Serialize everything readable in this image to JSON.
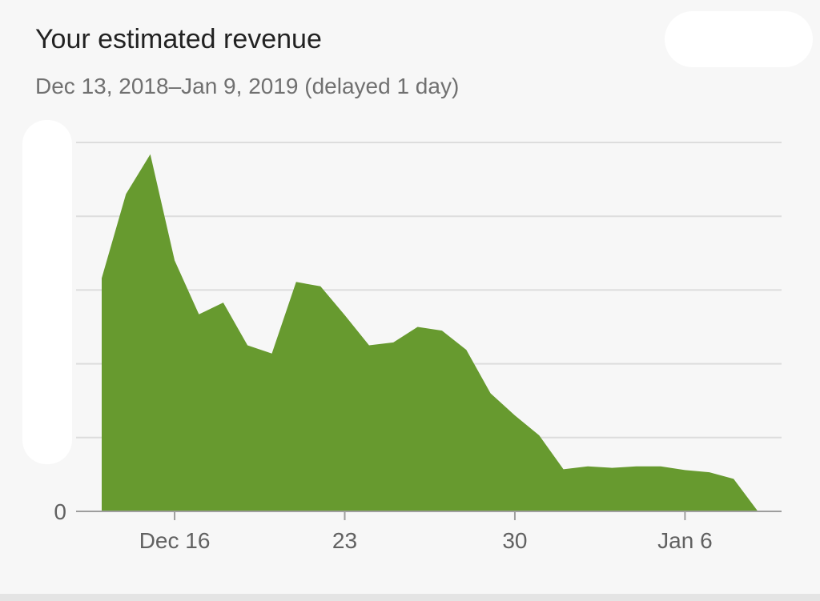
{
  "header": {
    "title": "Your estimated revenue",
    "subtitle": "Dec 13, 2018–Jan 9, 2019 (delayed 1 day)"
  },
  "colors": {
    "area_fill": "#679a2f",
    "gridline": "#dddddd",
    "axis": "#9e9e9e",
    "tick_text": "#616161"
  },
  "chart_data": {
    "type": "area",
    "title": "Your estimated revenue",
    "subtitle": "Dec 13, 2018–Jan 9, 2019 (delayed 1 day)",
    "xlabel": "",
    "ylabel": "",
    "grid": true,
    "legend": "none",
    "x": [
      "2018-12-13",
      "2018-12-14",
      "2018-12-15",
      "2018-12-16",
      "2018-12-17",
      "2018-12-18",
      "2018-12-19",
      "2018-12-20",
      "2018-12-21",
      "2018-12-22",
      "2018-12-23",
      "2018-12-24",
      "2018-12-25",
      "2018-12-26",
      "2018-12-27",
      "2018-12-28",
      "2018-12-29",
      "2018-12-30",
      "2018-12-31",
      "2019-01-01",
      "2019-01-02",
      "2019-01-03",
      "2019-01-04",
      "2019-01-05",
      "2019-01-06",
      "2019-01-07",
      "2019-01-08",
      "2019-01-09"
    ],
    "values": [
      3.16,
      4.3,
      4.84,
      3.4,
      2.67,
      2.83,
      2.25,
      2.14,
      3.11,
      3.05,
      2.66,
      2.25,
      2.29,
      2.5,
      2.45,
      2.19,
      1.6,
      1.3,
      1.03,
      0.57,
      0.61,
      0.59,
      0.61,
      0.61,
      0.56,
      0.53,
      0.44,
      0.0
    ],
    "y_ticks": [
      0,
      1,
      2,
      3,
      4,
      5
    ],
    "y_tick_labels": [
      "0"
    ],
    "ylim": [
      0,
      5
    ],
    "x_tick_labels": [
      {
        "date": "2018-12-16",
        "label": "Dec 16"
      },
      {
        "date": "2018-12-23",
        "label": "23"
      },
      {
        "date": "2018-12-30",
        "label": "30"
      },
      {
        "date": "2019-01-06",
        "label": "Jan 6"
      }
    ]
  }
}
